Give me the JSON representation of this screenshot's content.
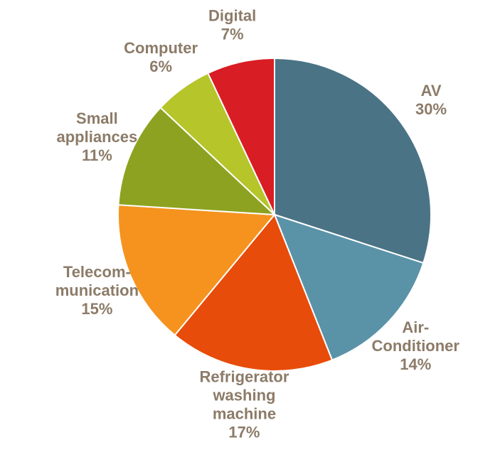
{
  "chart_data": {
    "type": "pie",
    "categories": [
      [
        "AV"
      ],
      [
        "Air-",
        "Conditioner"
      ],
      [
        "Refrigerator",
        "washing",
        "machine"
      ],
      [
        "Telecom-",
        "munication"
      ],
      [
        "Small",
        "appliances"
      ],
      [
        "Computer"
      ],
      [
        "Digital"
      ]
    ],
    "values": [
      30,
      14,
      17,
      15,
      11,
      6,
      7
    ],
    "value_labels": [
      "30%",
      "14%",
      "17%",
      "15%",
      "11%",
      "6%",
      "7%"
    ],
    "colors": [
      "#4a7385",
      "#5a93a8",
      "#e84c0a",
      "#f5931e",
      "#8da220",
      "#b5c52a",
      "#d91d24"
    ]
  }
}
